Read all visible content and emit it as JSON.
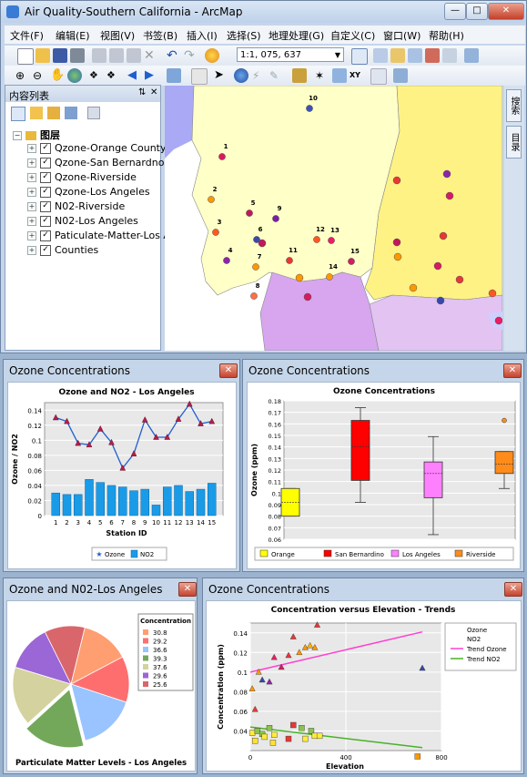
{
  "window": {
    "title": "Air Quality-Southern California - ArcMap"
  },
  "menus": [
    "文件(F)",
    "编辑(E)",
    "视图(V)",
    "书签(B)",
    "插入(I)",
    "选择(S)",
    "地理处理(G)",
    "自定义(C)",
    "窗口(W)",
    "帮助(H)"
  ],
  "toolbar": {
    "scale_value": "1:1, 075, 637"
  },
  "toc": {
    "title": "内容列表",
    "group": "图层",
    "layers": [
      "Qzone-Orange County",
      "Qzone-San Bernardno",
      "Qzone-Riverside",
      "Qzone-Los Angeles",
      "N02-Riverside",
      "N02-Los Angeles",
      "Paticulate-Matter-Los A",
      "Counties"
    ]
  },
  "side_tabs": [
    "搜索",
    "目录"
  ],
  "map": {
    "colors": {
      "background": "#ffffff",
      "county_a": "#ffffc8",
      "county_b": "#fff285",
      "county_c": "#b8b8f0",
      "county_d": "#e2c3f2",
      "county_e": "#d7a6ef",
      "ocean_blue": "#a9a9f5"
    },
    "station_labels": [
      "1",
      "2",
      "3",
      "4",
      "5",
      "6",
      "7",
      "8",
      "9",
      "10",
      "11",
      "12",
      "13",
      "14",
      "15"
    ]
  },
  "chart1": {
    "window_title": "Ozone Concentrations",
    "chart_data": {
      "type": "bar",
      "title": "Ozone and NO2 - Los Angeles",
      "xlabel": "Station ID",
      "ylabel": "Ozone / NO2",
      "categories": [
        "1",
        "2",
        "3",
        "4",
        "5",
        "6",
        "7",
        "8",
        "9",
        "10",
        "11",
        "12",
        "13",
        "14",
        "15"
      ],
      "ylim": [
        0,
        0.15
      ],
      "yticks": [
        "0",
        "0.02",
        "0.04",
        "0.06",
        "0.08",
        "0.1",
        "0.12",
        "0.14"
      ],
      "series": [
        {
          "name": "Ozone",
          "type": "line",
          "color": "#1f5fcf",
          "values": [
            0.13,
            0.125,
            0.096,
            0.094,
            0.115,
            0.097,
            0.063,
            0.082,
            0.127,
            0.104,
            0.104,
            0.128,
            0.148,
            0.122,
            0.125
          ]
        },
        {
          "name": "NO2",
          "type": "bar",
          "color": "#1a9be8",
          "values": [
            0.03,
            0.028,
            0.028,
            0.048,
            0.044,
            0.04,
            0.038,
            0.033,
            0.035,
            0.014,
            0.038,
            0.04,
            0.032,
            0.035,
            0.043
          ]
        }
      ],
      "legend": "bottom"
    }
  },
  "chart2": {
    "window_title": "Ozone Concentrations",
    "chart_data": {
      "type": "box",
      "title": "Ozone Concentrations",
      "ylabel": "Ozone (ppm)",
      "ylim": [
        0.06,
        0.18
      ],
      "yticks": [
        "0.06",
        "0.07",
        "0.08",
        "0.09",
        "0.1",
        "0.11",
        "0.12",
        "0.13",
        "0.14",
        "0.15",
        "0.16",
        "0.17",
        "0.18"
      ],
      "series": [
        {
          "name": "Orange",
          "color": "#ffff00",
          "min": 0.08,
          "q1": 0.08,
          "median": 0.092,
          "q3": 0.104,
          "max": 0.104,
          "outliers": []
        },
        {
          "name": "San Bernardino",
          "color": "#ff0000",
          "min": 0.092,
          "q1": 0.111,
          "median": 0.14,
          "q3": 0.163,
          "max": 0.174,
          "outliers": []
        },
        {
          "name": "Los Angeles",
          "color": "#ff80ff",
          "min": 0.064,
          "q1": 0.096,
          "median": 0.117,
          "q3": 0.127,
          "max": 0.149,
          "outliers": []
        },
        {
          "name": "Riverside",
          "color": "#ff8c1a",
          "min": 0.104,
          "q1": 0.117,
          "median": 0.125,
          "q3": 0.136,
          "max": 0.136,
          "outliers": [
            0.163
          ]
        }
      ],
      "legend": "bottom"
    }
  },
  "chart3": {
    "window_title": "Ozone and N02-Los Angeles",
    "chart_data": {
      "type": "pie",
      "title": "Particulate Matter Levels - Los Angeles",
      "legend_title": "Concentration",
      "legend": "top-right",
      "slices": [
        {
          "label": "30.8",
          "value": 30.8,
          "color": "#ff9e70"
        },
        {
          "label": "29.2",
          "value": 29.2,
          "color": "#ff6e6e"
        },
        {
          "label": "36.6",
          "value": 36.6,
          "color": "#99c4ff"
        },
        {
          "label": "39.3",
          "value": 39.3,
          "color": "#73a85a"
        },
        {
          "label": "37.6",
          "value": 37.6,
          "color": "#d4d29e"
        },
        {
          "label": "29.6",
          "value": 29.6,
          "color": "#9b66d6"
        },
        {
          "label": "25.6",
          "value": 25.6,
          "color": "#d9666b"
        }
      ]
    }
  },
  "chart4": {
    "window_title": "Ozone Concentrations",
    "chart_data": {
      "type": "scatter",
      "title": "Concentration versus Elevation - Trends",
      "xlabel": "Elevation",
      "ylabel": "Concentration (ppm)",
      "xlim": [
        0,
        800
      ],
      "ylim": [
        0.02,
        0.15
      ],
      "xticks": [
        "0",
        "400",
        "800"
      ],
      "yticks": [
        "0.04",
        "0.06",
        "0.08",
        "0.1",
        "0.12",
        "0.14"
      ],
      "legend": "top-right",
      "series": [
        {
          "name": "Ozone",
          "marker": "triangle",
          "points": [
            [
              8,
              0.083
            ],
            [
              20,
              0.062
            ],
            [
              35,
              0.1
            ],
            [
              50,
              0.092
            ],
            [
              80,
              0.09
            ],
            [
              100,
              0.115
            ],
            [
              130,
              0.105
            ],
            [
              160,
              0.117
            ],
            [
              180,
              0.136
            ],
            [
              205,
              0.12
            ],
            [
              230,
              0.125
            ],
            [
              250,
              0.127
            ],
            [
              270,
              0.125
            ],
            [
              280,
              0.148
            ],
            [
              720,
              0.104
            ]
          ]
        },
        {
          "name": "NO2",
          "marker": "square",
          "points": [
            [
              8,
              0.038
            ],
            [
              20,
              0.03
            ],
            [
              30,
              0.04
            ],
            [
              50,
              0.037
            ],
            [
              60,
              0.034
            ],
            [
              80,
              0.043
            ],
            [
              95,
              0.028
            ],
            [
              100,
              0.036
            ],
            [
              160,
              0.032
            ],
            [
              180,
              0.046
            ],
            [
              215,
              0.043
            ],
            [
              230,
              0.032
            ],
            [
              255,
              0.04
            ],
            [
              270,
              0.035
            ],
            [
              290,
              0.035
            ],
            [
              700,
              0.014
            ]
          ]
        },
        {
          "name": "Trend Ozone",
          "color": "#ff3fd0",
          "from": [
            0,
            0.1
          ],
          "to": [
            720,
            0.141
          ]
        },
        {
          "name": "Trend NO2",
          "color": "#49b227",
          "from": [
            0,
            0.044
          ],
          "to": [
            720,
            0.023
          ]
        }
      ]
    }
  }
}
